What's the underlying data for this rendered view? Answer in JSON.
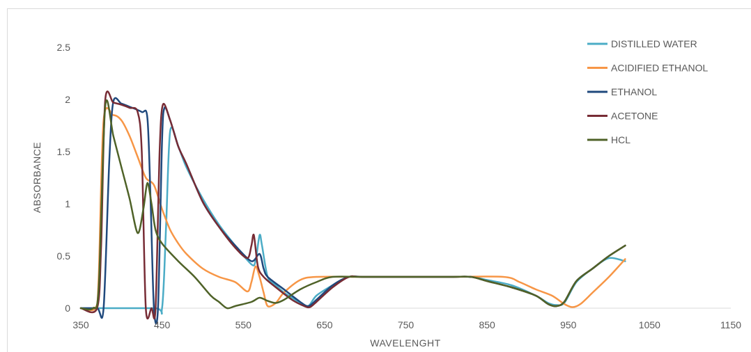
{
  "chart_data": {
    "type": "line",
    "title": "",
    "xlabel": "WAVELENGHT",
    "ylabel": "ABSORBANCE",
    "xlim": [
      350,
      1150
    ],
    "ylim": [
      0,
      2.5
    ],
    "xticks": [
      350,
      450,
      550,
      650,
      750,
      850,
      950,
      1050,
      1150
    ],
    "xtick_labels": [
      "350",
      "450",
      "550",
      "650",
      "750",
      "850",
      "950",
      "1050",
      "1150"
    ],
    "yticks": [
      0,
      0.5,
      1,
      1.5,
      2,
      2.5
    ],
    "ytick_labels": [
      "0",
      "0.5",
      "1",
      "1.5",
      "2",
      "2.5"
    ],
    "grid": false,
    "legend_position": "top-right",
    "series": [
      {
        "name": "DISTILLED WATER",
        "color": "#4bacc6",
        "points": [
          [
            350,
            0
          ],
          [
            440,
            0
          ],
          [
            450,
            0
          ],
          [
            455,
            0.8
          ],
          [
            460,
            1.7
          ],
          [
            470,
            1.55
          ],
          [
            480,
            1.35
          ],
          [
            500,
            1.05
          ],
          [
            520,
            0.8
          ],
          [
            540,
            0.6
          ],
          [
            560,
            0.42
          ],
          [
            565,
            0.45
          ],
          [
            570,
            0.7
          ],
          [
            573,
            0.6
          ],
          [
            580,
            0.3
          ],
          [
            590,
            0.22
          ],
          [
            600,
            0.15
          ],
          [
            610,
            0.1
          ],
          [
            620,
            0.05
          ],
          [
            630,
            0.02
          ],
          [
            640,
            0.12
          ],
          [
            660,
            0.22
          ],
          [
            680,
            0.3
          ],
          [
            700,
            0.3
          ],
          [
            750,
            0.3
          ],
          [
            800,
            0.3
          ],
          [
            830,
            0.3
          ],
          [
            850,
            0.27
          ],
          [
            880,
            0.22
          ],
          [
            910,
            0.12
          ],
          [
            925,
            0.05
          ],
          [
            935,
            0.03
          ],
          [
            945,
            0.05
          ],
          [
            960,
            0.25
          ],
          [
            980,
            0.38
          ],
          [
            1000,
            0.48
          ],
          [
            1020,
            0.45
          ]
        ]
      },
      {
        "name": "ACIDIFIED ETHANOL",
        "color": "#f79646",
        "points": [
          [
            350,
            0
          ],
          [
            368,
            0
          ],
          [
            372,
            0.3
          ],
          [
            378,
            1.8
          ],
          [
            390,
            1.85
          ],
          [
            400,
            1.8
          ],
          [
            410,
            1.65
          ],
          [
            420,
            1.45
          ],
          [
            430,
            1.25
          ],
          [
            440,
            1.18
          ],
          [
            450,
            0.95
          ],
          [
            460,
            0.75
          ],
          [
            470,
            0.62
          ],
          [
            480,
            0.52
          ],
          [
            500,
            0.38
          ],
          [
            520,
            0.3
          ],
          [
            540,
            0.25
          ],
          [
            555,
            0.16
          ],
          [
            560,
            0.25
          ],
          [
            565,
            0.4
          ],
          [
            570,
            0.3
          ],
          [
            575,
            0.15
          ],
          [
            580,
            0.02
          ],
          [
            590,
            0.05
          ],
          [
            600,
            0.15
          ],
          [
            620,
            0.27
          ],
          [
            640,
            0.3
          ],
          [
            700,
            0.3
          ],
          [
            800,
            0.3
          ],
          [
            870,
            0.3
          ],
          [
            890,
            0.25
          ],
          [
            910,
            0.18
          ],
          [
            930,
            0.12
          ],
          [
            945,
            0.04
          ],
          [
            955,
            0.01
          ],
          [
            965,
            0.04
          ],
          [
            980,
            0.15
          ],
          [
            1000,
            0.3
          ],
          [
            1020,
            0.47
          ]
        ]
      },
      {
        "name": "ETHANOL",
        "color": "#1f497d",
        "points": [
          [
            350,
            0
          ],
          [
            370,
            0
          ],
          [
            378,
            0
          ],
          [
            385,
            1.4
          ],
          [
            390,
            1.98
          ],
          [
            400,
            1.96
          ],
          [
            410,
            1.93
          ],
          [
            425,
            1.88
          ],
          [
            432,
            1.82
          ],
          [
            436,
            1.0
          ],
          [
            440,
            0
          ],
          [
            445,
            0
          ],
          [
            450,
            1.6
          ],
          [
            453,
            1.92
          ],
          [
            460,
            1.8
          ],
          [
            470,
            1.55
          ],
          [
            480,
            1.38
          ],
          [
            500,
            1.02
          ],
          [
            520,
            0.78
          ],
          [
            540,
            0.6
          ],
          [
            560,
            0.45
          ],
          [
            570,
            0.52
          ],
          [
            575,
            0.38
          ],
          [
            580,
            0.3
          ],
          [
            600,
            0.18
          ],
          [
            620,
            0.06
          ],
          [
            630,
            0.02
          ],
          [
            640,
            0.08
          ],
          [
            660,
            0.22
          ],
          [
            680,
            0.3
          ],
          [
            700,
            0.3
          ],
          [
            800,
            0.3
          ],
          [
            830,
            0.3
          ],
          [
            850,
            0.26
          ],
          [
            880,
            0.2
          ],
          [
            910,
            0.12
          ],
          [
            925,
            0.04
          ],
          [
            935,
            0.02
          ],
          [
            945,
            0.06
          ],
          [
            960,
            0.26
          ],
          [
            980,
            0.38
          ],
          [
            1000,
            0.5
          ],
          [
            1020,
            0.6
          ]
        ]
      },
      {
        "name": "ACETONE",
        "color": "#772c35",
        "points": [
          [
            350,
            0
          ],
          [
            370,
            0
          ],
          [
            375,
            0.6
          ],
          [
            380,
            1.99
          ],
          [
            390,
            1.97
          ],
          [
            400,
            1.95
          ],
          [
            410,
            1.92
          ],
          [
            420,
            1.88
          ],
          [
            425,
            1.5
          ],
          [
            430,
            0
          ],
          [
            437,
            0
          ],
          [
            442,
            0
          ],
          [
            447,
            1.5
          ],
          [
            451,
            1.95
          ],
          [
            460,
            1.8
          ],
          [
            470,
            1.55
          ],
          [
            480,
            1.38
          ],
          [
            500,
            1.02
          ],
          [
            520,
            0.78
          ],
          [
            540,
            0.58
          ],
          [
            555,
            0.48
          ],
          [
            560,
            0.6
          ],
          [
            563,
            0.7
          ],
          [
            568,
            0.4
          ],
          [
            575,
            0.3
          ],
          [
            590,
            0.2
          ],
          [
            610,
            0.08
          ],
          [
            625,
            0.02
          ],
          [
            632,
            0.01
          ],
          [
            640,
            0.06
          ],
          [
            660,
            0.2
          ],
          [
            680,
            0.3
          ],
          [
            700,
            0.3
          ],
          [
            800,
            0.3
          ],
          [
            830,
            0.3
          ],
          [
            850,
            0.26
          ],
          [
            880,
            0.2
          ],
          [
            910,
            0.12
          ],
          [
            925,
            0.04
          ],
          [
            935,
            0.02
          ],
          [
            945,
            0.06
          ],
          [
            960,
            0.26
          ],
          [
            980,
            0.38
          ],
          [
            1000,
            0.5
          ],
          [
            1020,
            0.6
          ]
        ]
      },
      {
        "name": "HCL",
        "color": "#4f6228",
        "points": [
          [
            350,
            0
          ],
          [
            365,
            0
          ],
          [
            372,
            0.2
          ],
          [
            380,
            1.93
          ],
          [
            390,
            1.65
          ],
          [
            400,
            1.35
          ],
          [
            410,
            1.05
          ],
          [
            420,
            0.72
          ],
          [
            427,
            0.95
          ],
          [
            432,
            1.2
          ],
          [
            437,
            1.0
          ],
          [
            442,
            0.75
          ],
          [
            450,
            0.62
          ],
          [
            470,
            0.45
          ],
          [
            490,
            0.3
          ],
          [
            510,
            0.12
          ],
          [
            520,
            0.06
          ],
          [
            530,
            0
          ],
          [
            540,
            0.02
          ],
          [
            560,
            0.06
          ],
          [
            570,
            0.1
          ],
          [
            580,
            0.07
          ],
          [
            590,
            0.05
          ],
          [
            600,
            0.08
          ],
          [
            620,
            0.18
          ],
          [
            640,
            0.25
          ],
          [
            660,
            0.3
          ],
          [
            700,
            0.3
          ],
          [
            800,
            0.3
          ],
          [
            830,
            0.3
          ],
          [
            850,
            0.26
          ],
          [
            880,
            0.2
          ],
          [
            910,
            0.12
          ],
          [
            925,
            0.04
          ],
          [
            935,
            0.02
          ],
          [
            945,
            0.06
          ],
          [
            960,
            0.26
          ],
          [
            980,
            0.38
          ],
          [
            1000,
            0.5
          ],
          [
            1020,
            0.6
          ]
        ]
      }
    ]
  }
}
